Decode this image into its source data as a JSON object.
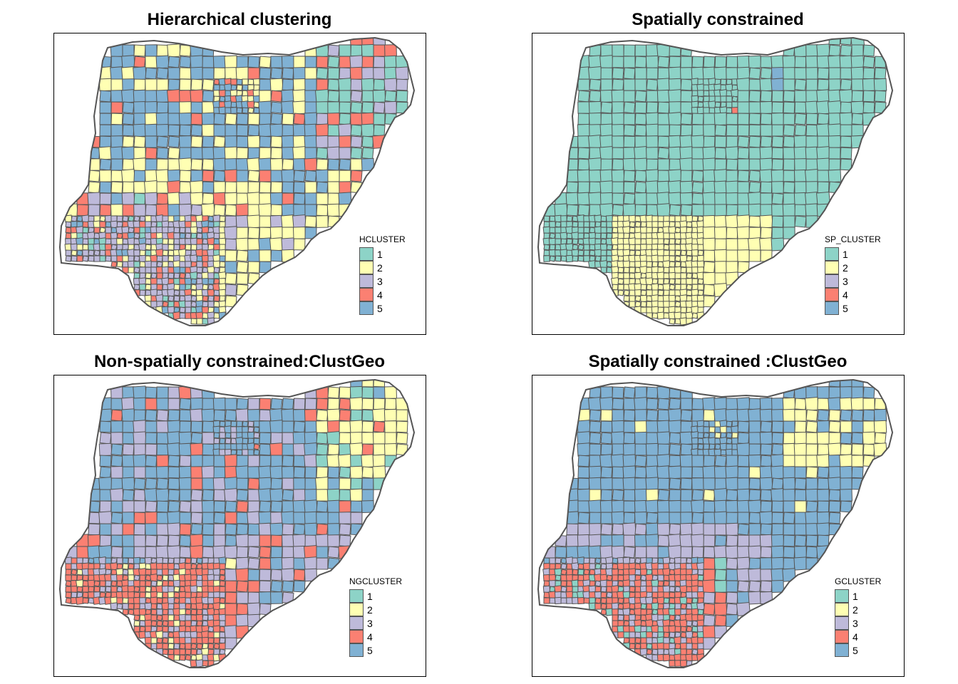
{
  "colors": {
    "1": "#8DD3C7",
    "2": "#FFFFB3",
    "3": "#BEBADA",
    "4": "#FB8072",
    "5": "#80B1D3",
    "border": "#555555"
  },
  "panels": [
    {
      "title": "Hierarchical clustering",
      "legend_title": "HCLUSTER",
      "legend_items": [
        "1",
        "2",
        "3",
        "4",
        "5"
      ],
      "dominant": [
        "5",
        "2",
        "3",
        "1",
        "4"
      ]
    },
    {
      "title": "Spatially constrained",
      "legend_title": "SP_CLUSTER",
      "legend_items": [
        "1",
        "2",
        "3",
        "4",
        "5"
      ],
      "dominant": [
        "1",
        "2"
      ]
    },
    {
      "title": "Non-spatially constrained:ClustGeo",
      "legend_title": "NGCLUSTER",
      "legend_items": [
        "1",
        "2",
        "3",
        "4",
        "5"
      ],
      "dominant": [
        "5",
        "3",
        "4",
        "2",
        "1"
      ]
    },
    {
      "title": "Spatially constrained :ClustGeo",
      "legend_title": "GCLUSTER",
      "legend_items": [
        "1",
        "2",
        "3",
        "4",
        "5"
      ],
      "dominant": [
        "5",
        "3",
        "4",
        "2",
        "1"
      ]
    }
  ]
}
